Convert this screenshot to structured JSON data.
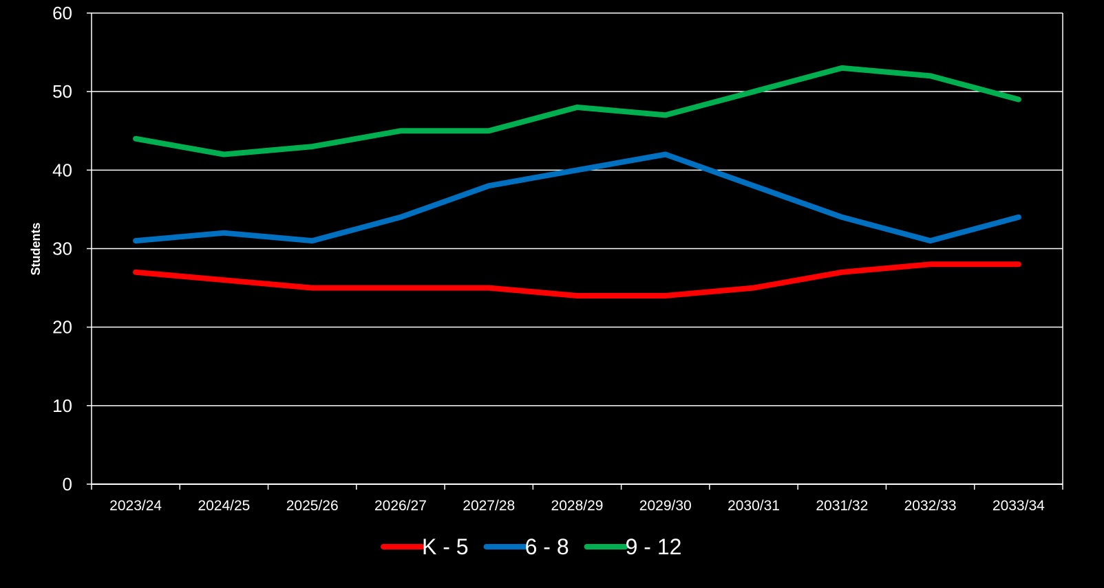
{
  "chart_data": {
    "type": "line",
    "title": "",
    "xlabel": "",
    "ylabel": "Students",
    "ylim": [
      0,
      60
    ],
    "yticks": [
      "0",
      "10",
      "20",
      "30",
      "40",
      "50",
      "60"
    ],
    "categories": [
      "2023/24",
      "2024/25",
      "2025/26",
      "2026/27",
      "2027/28",
      "2028/29",
      "2029/30",
      "2030/31",
      "2031/32",
      "2032/33",
      "2033/34"
    ],
    "grid": true,
    "legend_position": "bottom",
    "background": "#000000",
    "series": [
      {
        "name": "K - 5",
        "color": "#ff0000",
        "values": [
          27,
          26,
          25,
          25,
          25,
          24,
          24,
          25,
          27,
          28,
          28
        ]
      },
      {
        "name": "6 - 8",
        "color": "#0070c0",
        "values": [
          31,
          32,
          31,
          34,
          38,
          40,
          42,
          38,
          34,
          31,
          34
        ]
      },
      {
        "name": "9 - 12",
        "color": "#00b050",
        "values": [
          44,
          42,
          43,
          45,
          45,
          48,
          47,
          50,
          53,
          52,
          49
        ]
      }
    ]
  }
}
